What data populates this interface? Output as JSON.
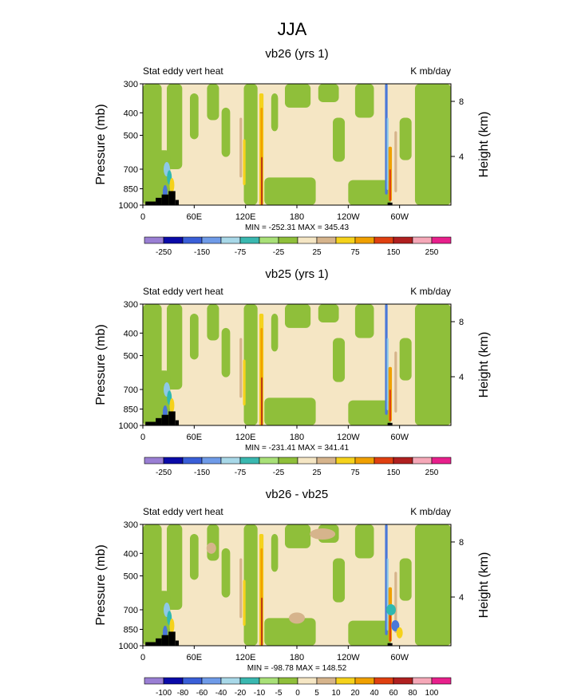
{
  "figure": {
    "title": "JJA"
  },
  "colors": {
    "green": "#8fbf3a",
    "beige": "#f5e6c4",
    "tan": "#d6b48c",
    "yellow": "#f5d21c",
    "orange": "#f0a000",
    "red": "#e04010",
    "darkred": "#b02020",
    "blue": "#4a78d8",
    "lightblue": "#8cc8e8",
    "teal": "#30b8b0",
    "pink": "#f05090",
    "land": "#000000"
  },
  "chart_data": [
    {
      "type": "heatmap",
      "title": "vb26 (yrs 1)",
      "left_label": "Stat eddy vert heat",
      "right_label": "K mb/day",
      "ylabel": "Pressure (mb)",
      "ylabel_right": "Height (km)",
      "x_ticks": [
        "0",
        "60E",
        "120E",
        "180",
        "120W",
        "60W"
      ],
      "x_range": [
        0,
        360
      ],
      "y_ticks": [
        "300",
        "400",
        "500",
        "700",
        "850",
        "1000"
      ],
      "y_range": [
        1000,
        300
      ],
      "right_ticks": [
        "8",
        "4"
      ],
      "stats": "MIN = -252.31   MAX = 345.43",
      "colorbar": {
        "labels": [
          "-250",
          "-150",
          "-75",
          "-25",
          "25",
          "75",
          "150",
          "250"
        ],
        "colors": [
          "#9a7fd4",
          "#0a0aa8",
          "#3a5fd8",
          "#6f9be8",
          "#a8d8e8",
          "#3ab8b0",
          "#a8e078",
          "#8fbf3a",
          "#f5e6c4",
          "#d6b48c",
          "#f5d21c",
          "#f0a000",
          "#e04010",
          "#b02020",
          "#f5a8b8",
          "#e8208c"
        ]
      }
    },
    {
      "type": "heatmap",
      "title": "vb25 (yrs 1)",
      "left_label": "Stat eddy vert heat",
      "right_label": "K mb/day",
      "ylabel": "Pressure (mb)",
      "ylabel_right": "Height (km)",
      "x_ticks": [
        "0",
        "60E",
        "120E",
        "180",
        "120W",
        "60W"
      ],
      "x_range": [
        0,
        360
      ],
      "y_ticks": [
        "300",
        "400",
        "500",
        "700",
        "850",
        "1000"
      ],
      "y_range": [
        1000,
        300
      ],
      "right_ticks": [
        "8",
        "4"
      ],
      "stats": "MIN = -231.41   MAX = 341.41",
      "colorbar": {
        "labels": [
          "-250",
          "-150",
          "-75",
          "-25",
          "25",
          "75",
          "150",
          "250"
        ],
        "colors": [
          "#9a7fd4",
          "#0a0aa8",
          "#3a5fd8",
          "#6f9be8",
          "#a8d8e8",
          "#3ab8b0",
          "#a8e078",
          "#8fbf3a",
          "#f5e6c4",
          "#d6b48c",
          "#f5d21c",
          "#f0a000",
          "#e04010",
          "#b02020",
          "#f5a8b8",
          "#e8208c"
        ]
      }
    },
    {
      "type": "heatmap",
      "title": "vb26 - vb25",
      "left_label": "Stat eddy vert heat",
      "right_label": "K mb/day",
      "ylabel": "Pressure (mb)",
      "ylabel_right": "Height (km)",
      "x_ticks": [
        "0",
        "60E",
        "120E",
        "180",
        "120W",
        "60W"
      ],
      "x_range": [
        0,
        360
      ],
      "y_ticks": [
        "300",
        "400",
        "500",
        "700",
        "850",
        "1000"
      ],
      "y_range": [
        1000,
        300
      ],
      "right_ticks": [
        "8",
        "4"
      ],
      "stats": "MIN = -98.78   MAX = 148.52",
      "colorbar": {
        "labels": [
          "-100",
          "-80",
          "-60",
          "-40",
          "-20",
          "-10",
          "-5",
          "0",
          "5",
          "10",
          "20",
          "40",
          "60",
          "80",
          "100"
        ],
        "colors": [
          "#9a7fd4",
          "#0a0aa8",
          "#3a5fd8",
          "#6f9be8",
          "#a8d8e8",
          "#3ab8b0",
          "#a8e078",
          "#8fbf3a",
          "#f5e6c4",
          "#d6b48c",
          "#f5d21c",
          "#f0a000",
          "#e04010",
          "#b02020",
          "#f5a8b8",
          "#e8208c"
        ]
      }
    }
  ]
}
